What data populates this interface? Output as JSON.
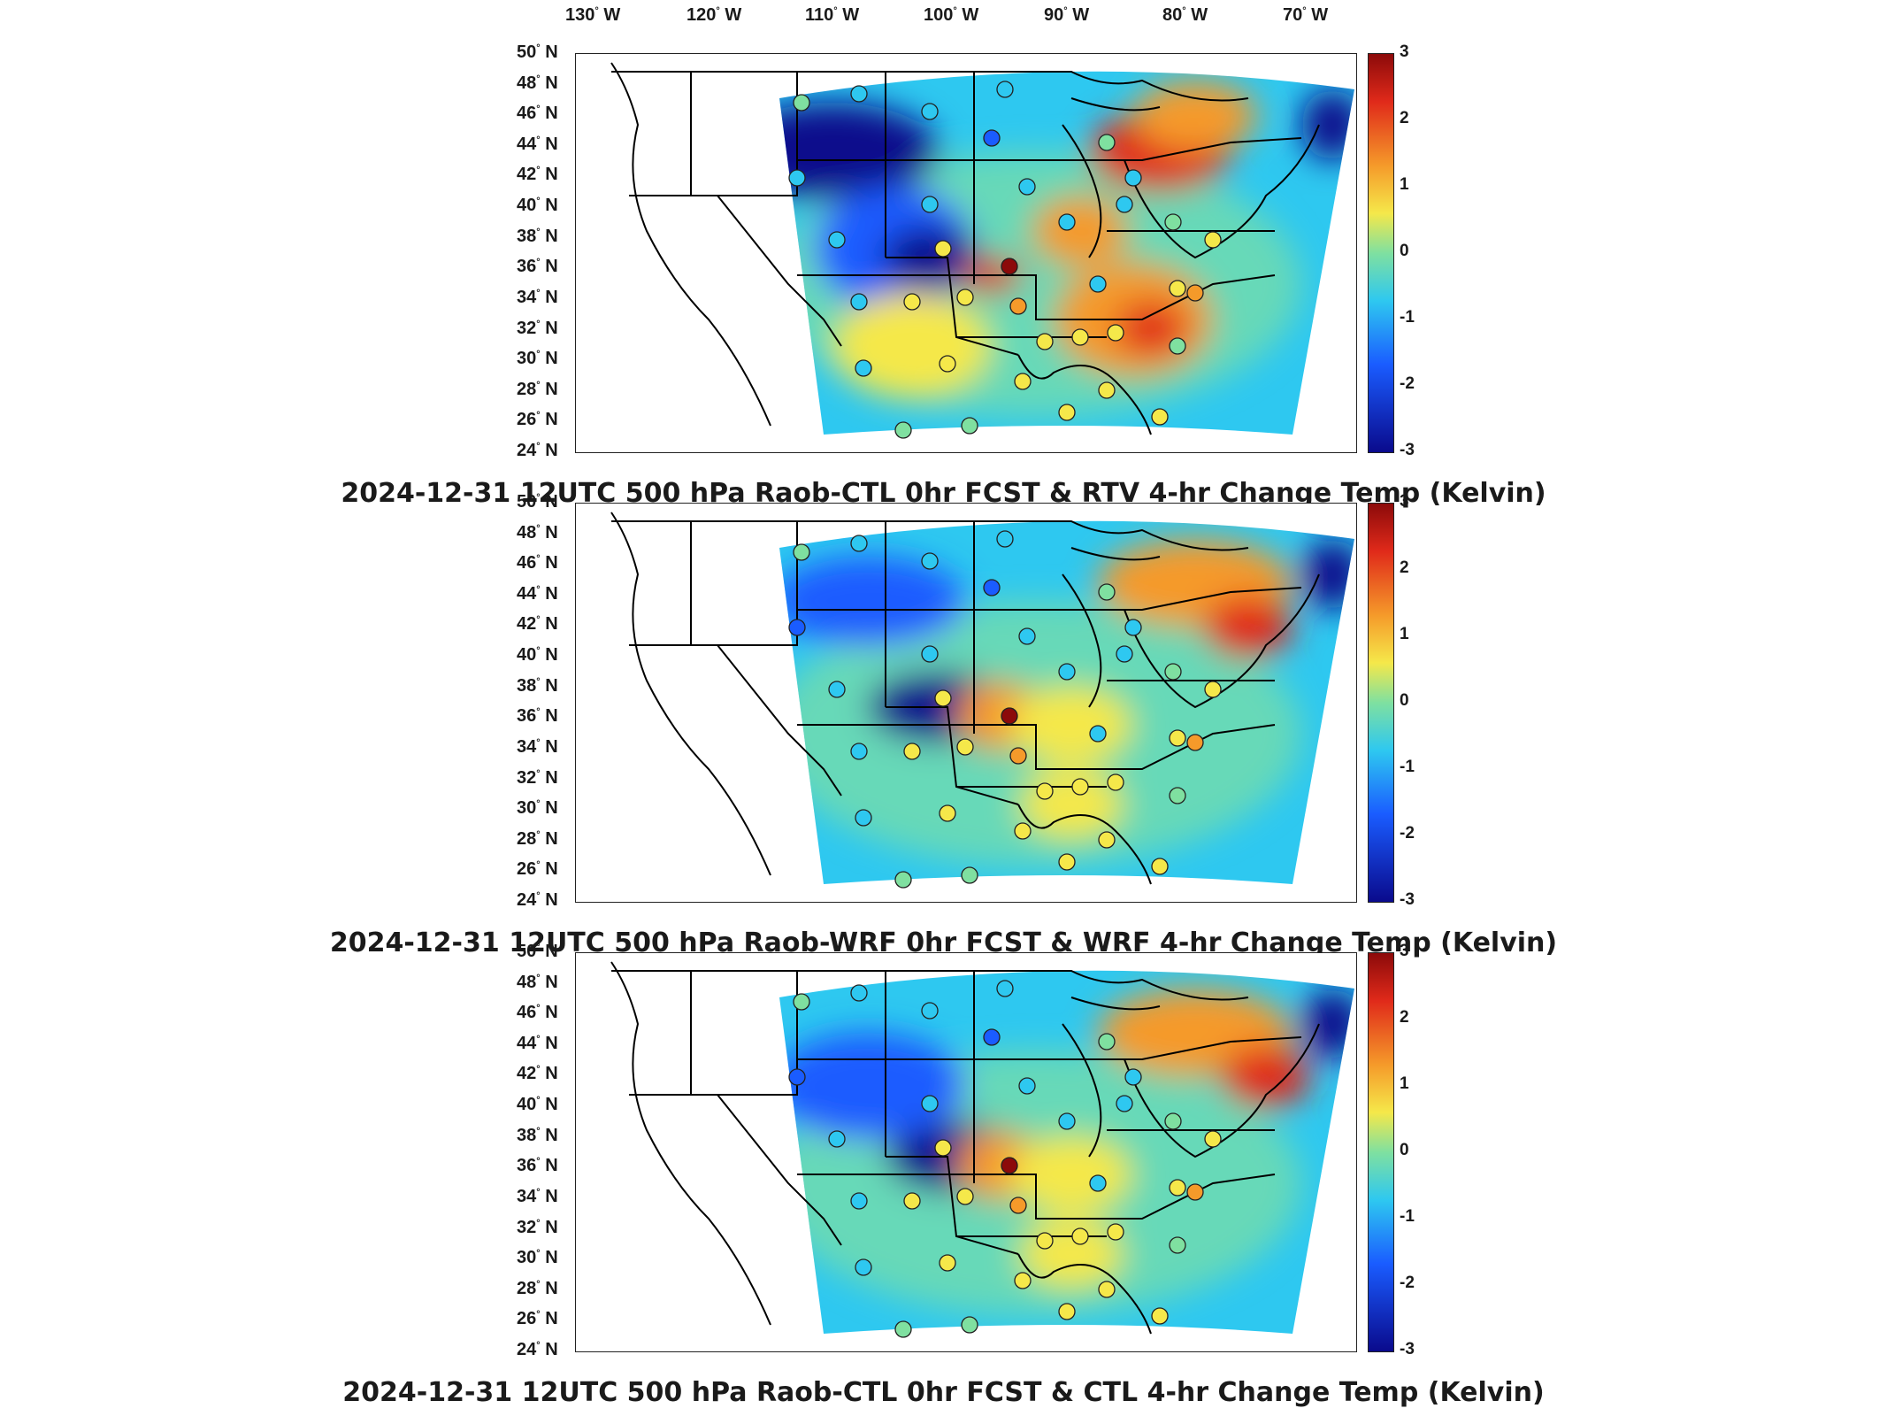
{
  "longitude_labels": [
    {
      "deg": "130",
      "dir": "W"
    },
    {
      "deg": "120",
      "dir": "W"
    },
    {
      "deg": "110",
      "dir": "W"
    },
    {
      "deg": "100",
      "dir": "W"
    },
    {
      "deg": "90",
      "dir": "W"
    },
    {
      "deg": "80",
      "dir": "W"
    },
    {
      "deg": "70",
      "dir": "W"
    }
  ],
  "latitude_labels": [
    {
      "deg": "50",
      "dir": "N"
    },
    {
      "deg": "48",
      "dir": "N"
    },
    {
      "deg": "46",
      "dir": "N"
    },
    {
      "deg": "44",
      "dir": "N"
    },
    {
      "deg": "42",
      "dir": "N"
    },
    {
      "deg": "40",
      "dir": "N"
    },
    {
      "deg": "38",
      "dir": "N"
    },
    {
      "deg": "36",
      "dir": "N"
    },
    {
      "deg": "34",
      "dir": "N"
    },
    {
      "deg": "32",
      "dir": "N"
    },
    {
      "deg": "30",
      "dir": "N"
    },
    {
      "deg": "28",
      "dir": "N"
    },
    {
      "deg": "26",
      "dir": "N"
    },
    {
      "deg": "24",
      "dir": "N"
    }
  ],
  "colorbar": {
    "ticks": [
      "3",
      "2",
      "1",
      "0",
      "-1",
      "-2",
      "-3"
    ],
    "range": [
      -3,
      3
    ],
    "colormap": "jet"
  },
  "colors": {
    "dark_blue": "#0a0a8c",
    "blue": "#1a5cff",
    "cyan": "#2ec8f0",
    "green": "#7fe0a0",
    "yellow": "#f5e84a",
    "orange": "#f59a2a",
    "red": "#e02a1a",
    "dark_red": "#8c0a0a"
  },
  "panels": [
    {
      "title": "2024-12-31 12UTC 500 hPa Raob-CTL 0hr FCST & RTV 4-hr Change Temp (Kelvin)"
    },
    {
      "title": "2024-12-31 12UTC 500 hPa Raob-WRF 0hr FCST & WRF 4-hr Change Temp (Kelvin)"
    },
    {
      "title": "2024-12-31 12UTC 500 hPa Raob-CTL 0hr FCST & CTL 4-hr Change Temp (Kelvin)"
    }
  ]
}
